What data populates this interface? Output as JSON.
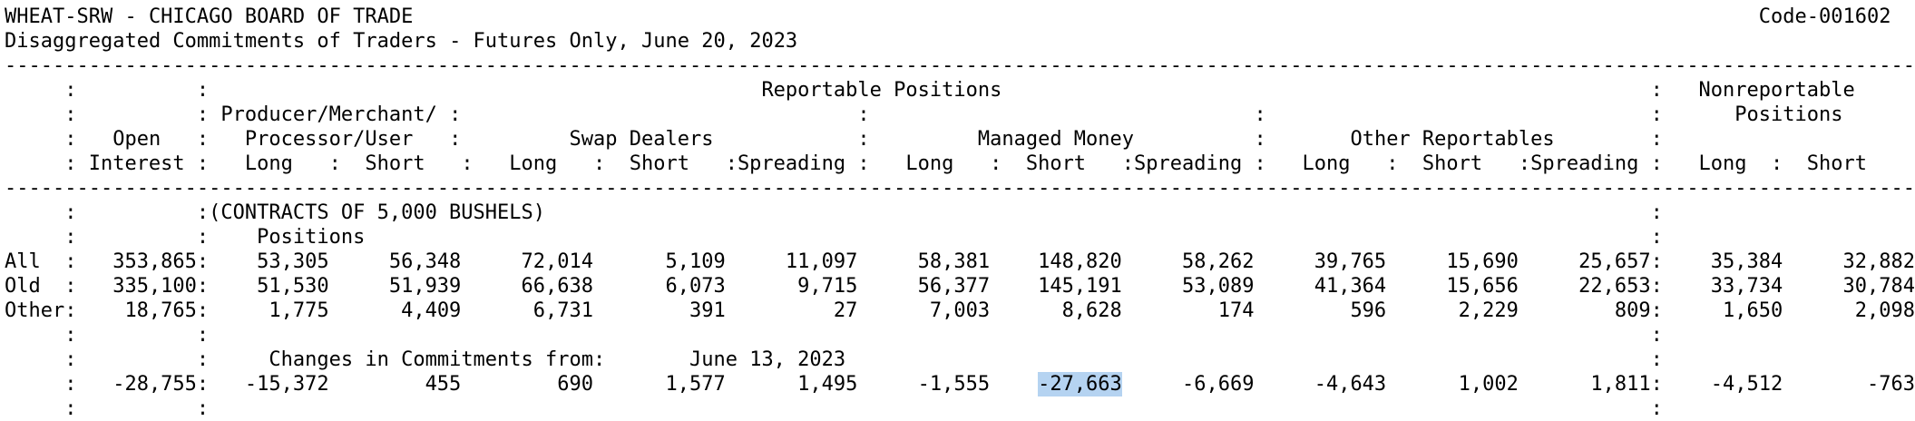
{
  "header": {
    "title": "WHEAT-SRW - CHICAGO BOARD OF TRADE",
    "code": "Code-001602",
    "subtitle": "Disaggregated Commitments of Traders - Futures Only, June 20, 2023"
  },
  "columns": {
    "reportable": "Reportable Positions",
    "nonreportable_line1": "Nonreportable",
    "nonreportable_line2": "Positions",
    "open_line1": "Open",
    "open_line2": "Interest",
    "producer_line1": "Producer/Merchant/",
    "producer_line2": "Processor/User",
    "swap_dealers": "Swap Dealers",
    "managed_money": "Managed Money",
    "other_reportables": "Other Reportables",
    "long": "Long",
    "short": "Short",
    "spreading": "Spreading"
  },
  "body": {
    "contracts_note": "(CONTRACTS OF 5,000 BUSHELS)",
    "positions_label": "Positions",
    "rows": [
      {
        "label": "All",
        "oi": "353,865",
        "values": [
          "53,305",
          "56,348",
          "72,014",
          "5,109",
          "11,097",
          "58,381",
          "148,820",
          "58,262",
          "39,765",
          "15,690",
          "25,657"
        ],
        "nonreportable": [
          "35,384",
          "32,882"
        ]
      },
      {
        "label": "Old",
        "oi": "335,100",
        "values": [
          "51,530",
          "51,939",
          "66,638",
          "6,073",
          "9,715",
          "56,377",
          "145,191",
          "53,089",
          "41,364",
          "15,656",
          "22,653"
        ],
        "nonreportable": [
          "33,734",
          "30,784"
        ]
      },
      {
        "label": "Other",
        "oi": "18,765",
        "values": [
          "1,775",
          "4,409",
          "6,731",
          "391",
          "27",
          "7,003",
          "8,628",
          "174",
          "596",
          "2,229",
          "809"
        ],
        "nonreportable": [
          "1,650",
          "2,098"
        ]
      }
    ],
    "changes": {
      "label": "Changes in Commitments from:",
      "date": "June 13, 2023",
      "oi": "-28,755",
      "values": [
        "-15,372",
        "455",
        "690",
        "1,577",
        "1,495",
        "-1,555",
        "-27,663",
        "-6,669",
        "-4,643",
        "1,002",
        "1,811"
      ],
      "nonreportable": [
        "-4,512",
        "-763"
      ],
      "highlight_index": 6,
      "highlight_color": "#b5d3f1"
    }
  }
}
